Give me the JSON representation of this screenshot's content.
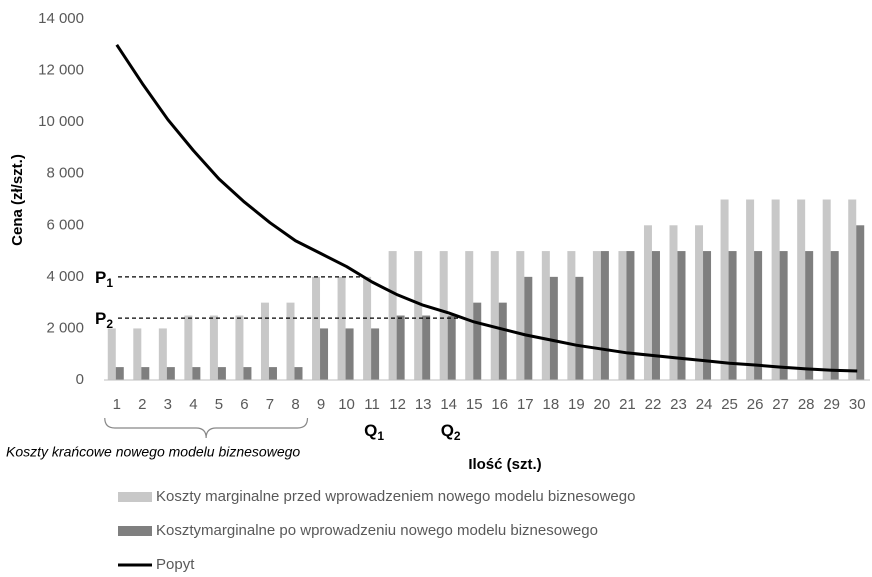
{
  "chart_data": {
    "type": "bar_line",
    "ylabel": "Cena (zł/szt.)",
    "xlabel": "Ilość (szt.)",
    "categories": [
      "1",
      "2",
      "3",
      "4",
      "5",
      "6",
      "7",
      "8",
      "9",
      "10",
      "11",
      "12",
      "13",
      "14",
      "15",
      "16",
      "17",
      "18",
      "19",
      "20",
      "21",
      "22",
      "23",
      "24",
      "25",
      "26",
      "27",
      "28",
      "29",
      "30"
    ],
    "series": [
      {
        "name": "Koszty marginalne przed wprowadzeniem nowego modelu biznesowego",
        "kind": "bar",
        "color": "#c8c8c8",
        "values": [
          2000,
          2000,
          2000,
          2500,
          2500,
          2500,
          3000,
          3000,
          4000,
          4000,
          4000,
          5000,
          5000,
          5000,
          5000,
          5000,
          5000,
          5000,
          5000,
          5000,
          5000,
          6000,
          6000,
          6000,
          7000,
          7000,
          7000,
          7000,
          7000,
          7000
        ]
      },
      {
        "name": "Kosztymarginalne po wprowadzeniu nowego modelu biznesowego",
        "kind": "bar",
        "color": "#7f7f7f",
        "values": [
          500,
          500,
          500,
          500,
          500,
          500,
          500,
          500,
          2000,
          2000,
          2000,
          2500,
          2500,
          2500,
          3000,
          3000,
          4000,
          4000,
          4000,
          5000,
          5000,
          5000,
          5000,
          5000,
          5000,
          5000,
          5000,
          5000,
          5000,
          6000
        ]
      },
      {
        "name": "Popyt",
        "kind": "line",
        "color": "#000000",
        "values": [
          13000,
          11500,
          10100,
          8900,
          7800,
          6900,
          6100,
          5400,
          4900,
          4400,
          3800,
          3300,
          2900,
          2600,
          2250,
          2000,
          1750,
          1550,
          1350,
          1200,
          1050,
          950,
          850,
          750,
          650,
          580,
          500,
          430,
          380,
          350
        ]
      }
    ],
    "ylim": [
      0,
      14000
    ],
    "yticks": [
      0,
      {
        "value": 2000,
        "label": "2 000"
      },
      {
        "value": 4000,
        "label": "4 000"
      },
      {
        "value": 6000,
        "label": "6 000"
      },
      {
        "value": 8000,
        "label": "8 000"
      },
      {
        "value": 10000,
        "label": "10 000"
      },
      {
        "value": 12000,
        "label": "12 000"
      },
      {
        "value": 14000,
        "label": "14 000"
      }
    ],
    "price_marks": [
      {
        "text": "P",
        "sub": "1",
        "value": 4000
      },
      {
        "text": "P",
        "sub": "2",
        "value": 2400
      }
    ],
    "quantity_marks": [
      {
        "text": "Q",
        "sub": "1",
        "category": "11"
      },
      {
        "text": "Q",
        "sub": "2",
        "category": "14"
      }
    ],
    "brace": {
      "label": "Koszty krańcowe nowego modelu biznesowego",
      "from": "1",
      "to": "8"
    }
  }
}
